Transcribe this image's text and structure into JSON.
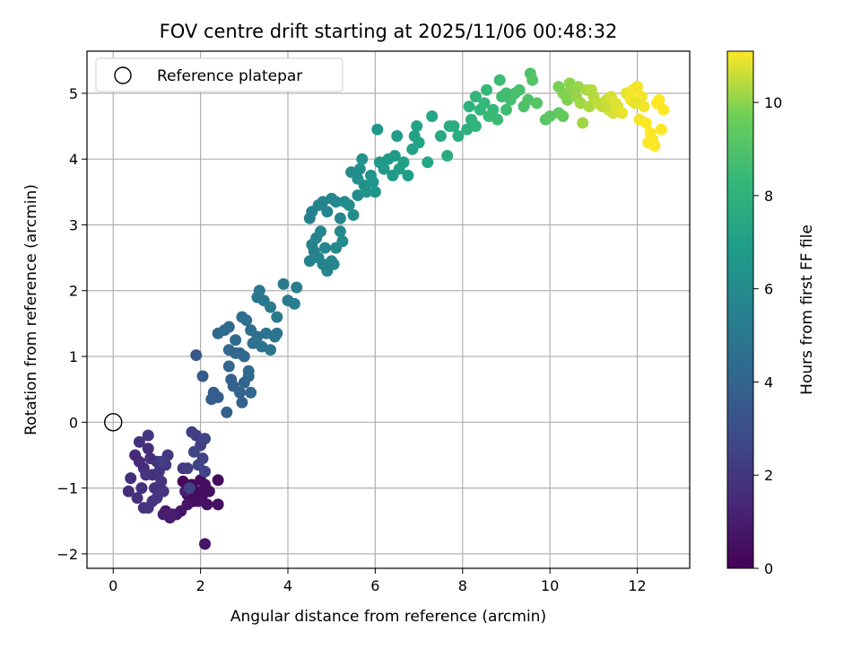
{
  "chart_data": {
    "type": "scatter",
    "title": "FOV centre drift starting at 2025/11/06 00:48:32",
    "xlabel": "Angular distance from reference (arcmin)",
    "ylabel": "Rotation from reference (arcmin)",
    "xlim": [
      -0.6,
      13.2
    ],
    "ylim": [
      -2.22,
      5.64
    ],
    "xticks": [
      0,
      2,
      4,
      6,
      8,
      10,
      12
    ],
    "yticks": [
      -2,
      -1,
      0,
      1,
      2,
      3,
      4,
      5
    ],
    "grid": true,
    "colormap": "viridis",
    "colorbar": {
      "label": "Hours from first FF file",
      "range": [
        0,
        11.1
      ],
      "ticks": [
        0,
        2,
        4,
        6,
        8,
        10
      ]
    },
    "legend": {
      "placement": "top-left",
      "entries": [
        {
          "label": "Reference platepar",
          "marker": "open-circle"
        }
      ]
    },
    "reference_point": {
      "x": 0,
      "y": 0
    },
    "point_color": "#000000",
    "points": [
      [
        1.6,
        -0.9,
        0.2
      ],
      [
        1.7,
        -1.1,
        0.3
      ],
      [
        1.8,
        -0.95,
        0.3
      ],
      [
        1.9,
        -1.05,
        0.4
      ],
      [
        2.0,
        -0.88,
        0.4
      ],
      [
        2.05,
        -1.1,
        0.5
      ],
      [
        2.1,
        -0.95,
        0.5
      ],
      [
        2.15,
        -1.25,
        0.6
      ],
      [
        1.95,
        -1.2,
        0.6
      ],
      [
        2.1,
        -1.85,
        0.7
      ],
      [
        2.2,
        -1.05,
        0.5
      ],
      [
        1.85,
        -1.2,
        0.5
      ],
      [
        2.4,
        -0.88,
        0.4
      ],
      [
        2.4,
        -1.25,
        0.5
      ],
      [
        1.7,
        -1.25,
        0.6
      ],
      [
        1.55,
        -1.35,
        0.7
      ],
      [
        1.45,
        -1.4,
        0.8
      ],
      [
        1.3,
        -1.45,
        0.9
      ],
      [
        1.2,
        -1.35,
        0.9
      ],
      [
        1.15,
        -1.4,
        1.0
      ],
      [
        1.35,
        -1.4,
        1.0
      ],
      [
        1.65,
        -1.05,
        1.0
      ],
      [
        0.5,
        -0.5,
        1.5
      ],
      [
        0.6,
        -0.6,
        1.5
      ],
      [
        0.7,
        -0.7,
        1.6
      ],
      [
        0.8,
        -0.4,
        1.6
      ],
      [
        0.85,
        -0.55,
        1.7
      ],
      [
        0.9,
        -0.8,
        1.7
      ],
      [
        0.95,
        -1.0,
        1.8
      ],
      [
        1.0,
        -0.6,
        1.8
      ],
      [
        1.05,
        -0.75,
        1.9
      ],
      [
        1.1,
        -0.9,
        1.9
      ],
      [
        1.15,
        -1.05,
        2.0
      ],
      [
        1.2,
        -0.65,
        2.0
      ],
      [
        1.25,
        -0.5,
        2.1
      ],
      [
        0.4,
        -0.85,
        1.6
      ],
      [
        0.35,
        -1.05,
        1.6
      ],
      [
        0.55,
        -1.15,
        1.7
      ],
      [
        0.65,
        -1.0,
        1.7
      ],
      [
        0.7,
        -1.3,
        1.8
      ],
      [
        0.8,
        -1.3,
        1.9
      ],
      [
        0.9,
        -1.2,
        1.9
      ],
      [
        0.8,
        -0.2,
        2.0
      ],
      [
        1.0,
        -1.15,
        2.0
      ],
      [
        0.6,
        -0.3,
        1.8
      ],
      [
        1.6,
        -0.7,
        2.1
      ],
      [
        1.7,
        -0.7,
        2.2
      ],
      [
        1.8,
        -0.15,
        2.3
      ],
      [
        1.9,
        -0.2,
        2.3
      ],
      [
        2.0,
        -0.35,
        2.4
      ],
      [
        2.05,
        -0.55,
        2.4
      ],
      [
        1.95,
        -0.65,
        2.5
      ],
      [
        2.1,
        -0.75,
        2.5
      ],
      [
        1.85,
        -0.45,
        2.6
      ],
      [
        2.1,
        -0.25,
        2.6
      ],
      [
        1.75,
        -1.0,
        2.5
      ],
      [
        0.75,
        -0.8,
        1.9
      ],
      [
        1.1,
        -0.6,
        2.2
      ],
      [
        1.9,
        1.02,
        3.4
      ],
      [
        2.05,
        0.7,
        3.5
      ],
      [
        2.25,
        0.35,
        3.6
      ],
      [
        2.3,
        0.45,
        3.7
      ],
      [
        2.4,
        0.38,
        3.7
      ],
      [
        2.6,
        0.15,
        3.8
      ],
      [
        2.7,
        0.65,
        3.9
      ],
      [
        2.75,
        0.55,
        3.9
      ],
      [
        2.9,
        0.45,
        4.0
      ],
      [
        2.95,
        0.3,
        4.0
      ],
      [
        3.0,
        0.6,
        4.0
      ],
      [
        3.1,
        0.7,
        4.1
      ],
      [
        3.15,
        0.45,
        4.1
      ],
      [
        2.65,
        0.85,
        4.1
      ],
      [
        2.8,
        1.05,
        4.2
      ],
      [
        2.9,
        1.05,
        4.2
      ],
      [
        3.0,
        1.0,
        4.2
      ],
      [
        3.1,
        0.78,
        4.3
      ],
      [
        2.4,
        1.35,
        4.2
      ],
      [
        2.55,
        1.4,
        4.3
      ],
      [
        2.65,
        1.45,
        4.3
      ],
      [
        2.8,
        1.25,
        4.4
      ],
      [
        2.95,
        1.6,
        4.4
      ],
      [
        3.05,
        1.55,
        4.5
      ],
      [
        3.15,
        1.4,
        4.5
      ],
      [
        3.2,
        1.2,
        4.6
      ],
      [
        3.3,
        1.3,
        4.6
      ],
      [
        3.4,
        1.15,
        4.7
      ],
      [
        3.5,
        1.35,
        4.7
      ],
      [
        3.6,
        1.1,
        4.8
      ],
      [
        3.7,
        1.3,
        4.8
      ],
      [
        3.75,
        1.35,
        4.9
      ],
      [
        3.3,
        1.9,
        4.9
      ],
      [
        3.35,
        2.0,
        5.0
      ],
      [
        3.45,
        1.85,
        5.0
      ],
      [
        3.6,
        1.75,
        5.1
      ],
      [
        3.75,
        1.6,
        5.1
      ],
      [
        3.9,
        2.1,
        5.2
      ],
      [
        4.0,
        1.85,
        5.2
      ],
      [
        4.2,
        2.05,
        5.3
      ],
      [
        4.15,
        1.8,
        5.3
      ],
      [
        2.65,
        1.1,
        4.2
      ],
      [
        4.5,
        3.1,
        5.5
      ],
      [
        4.55,
        3.2,
        5.5
      ],
      [
        4.7,
        3.3,
        5.6
      ],
      [
        4.8,
        3.35,
        5.6
      ],
      [
        4.9,
        3.2,
        5.7
      ],
      [
        5.0,
        3.4,
        5.7
      ],
      [
        5.1,
        3.35,
        5.8
      ],
      [
        5.2,
        3.1,
        5.8
      ],
      [
        4.6,
        2.6,
        5.6
      ],
      [
        4.7,
        2.5,
        5.6
      ],
      [
        4.8,
        2.4,
        5.7
      ],
      [
        4.9,
        2.3,
        5.7
      ],
      [
        5.0,
        2.45,
        5.8
      ],
      [
        5.05,
        2.4,
        5.8
      ],
      [
        4.55,
        2.7,
        5.6
      ],
      [
        4.65,
        2.8,
        5.7
      ],
      [
        4.75,
        2.9,
        5.7
      ],
      [
        4.85,
        2.65,
        5.8
      ],
      [
        4.5,
        2.45,
        5.5
      ],
      [
        5.1,
        2.65,
        5.9
      ],
      [
        5.2,
        2.9,
        5.9
      ],
      [
        5.25,
        2.75,
        6.0
      ],
      [
        5.3,
        3.35,
        6.0
      ],
      [
        5.45,
        3.8,
        6.1
      ],
      [
        5.5,
        3.15,
        6.1
      ],
      [
        5.6,
        3.7,
        6.2
      ],
      [
        5.65,
        3.85,
        6.2
      ],
      [
        5.7,
        4.0,
        6.3
      ],
      [
        5.75,
        3.6,
        6.3
      ],
      [
        5.8,
        3.5,
        6.4
      ],
      [
        5.9,
        3.75,
        6.4
      ],
      [
        5.95,
        3.65,
        6.5
      ],
      [
        6.0,
        3.5,
        6.5
      ],
      [
        5.4,
        3.3,
        6.1
      ],
      [
        5.6,
        3.45,
        6.2
      ],
      [
        6.05,
        4.45,
        6.6
      ],
      [
        6.1,
        3.95,
        6.7
      ],
      [
        6.2,
        3.85,
        6.7
      ],
      [
        6.3,
        4.0,
        6.8
      ],
      [
        6.4,
        3.75,
        6.8
      ],
      [
        6.45,
        4.05,
        6.9
      ],
      [
        6.5,
        4.35,
        6.9
      ],
      [
        6.55,
        3.85,
        7.0
      ],
      [
        6.65,
        3.95,
        7.0
      ],
      [
        6.75,
        3.75,
        7.0
      ],
      [
        6.85,
        4.15,
        7.1
      ],
      [
        6.9,
        4.35,
        7.1
      ],
      [
        6.95,
        4.5,
        7.2
      ],
      [
        7.0,
        4.25,
        7.2
      ],
      [
        7.2,
        3.95,
        7.3
      ],
      [
        7.3,
        4.65,
        7.4
      ],
      [
        7.5,
        4.35,
        7.5
      ],
      [
        7.65,
        4.05,
        7.6
      ],
      [
        7.7,
        4.5,
        7.6
      ],
      [
        7.8,
        4.5,
        7.7
      ],
      [
        7.9,
        4.35,
        7.8
      ],
      [
        8.1,
        4.45,
        7.9
      ],
      [
        8.2,
        4.6,
        8.0
      ],
      [
        8.3,
        4.5,
        8.1
      ],
      [
        8.15,
        4.8,
        8.0
      ],
      [
        8.3,
        4.95,
        8.2
      ],
      [
        8.4,
        4.75,
        8.2
      ],
      [
        8.5,
        4.85,
        8.3
      ],
      [
        8.55,
        5.05,
        8.3
      ],
      [
        8.6,
        4.65,
        8.4
      ],
      [
        8.7,
        4.75,
        8.4
      ],
      [
        8.8,
        4.6,
        8.5
      ],
      [
        8.85,
        5.2,
        8.5
      ],
      [
        8.9,
        4.95,
        8.6
      ],
      [
        9.0,
        4.75,
        8.6
      ],
      [
        9.1,
        4.9,
        8.7
      ],
      [
        9.2,
        5.0,
        8.8
      ],
      [
        9.3,
        5.05,
        8.8
      ],
      [
        9.4,
        4.8,
        8.9
      ],
      [
        9.5,
        4.9,
        9.0
      ],
      [
        9.55,
        5.3,
        9.0
      ],
      [
        9.6,
        5.2,
        9.1
      ],
      [
        9.7,
        4.85,
        9.1
      ],
      [
        9.9,
        4.6,
        9.2
      ],
      [
        10.0,
        4.65,
        9.3
      ],
      [
        10.2,
        4.7,
        9.4
      ],
      [
        10.3,
        4.65,
        9.5
      ],
      [
        9.0,
        5.0,
        8.7
      ],
      [
        10.2,
        5.1,
        9.8
      ],
      [
        10.3,
        5.0,
        9.9
      ],
      [
        10.4,
        4.9,
        9.9
      ],
      [
        10.45,
        5.15,
        10.0
      ],
      [
        10.5,
        5.05,
        10.0
      ],
      [
        10.6,
        4.95,
        10.1
      ],
      [
        10.65,
        5.1,
        10.1
      ],
      [
        10.7,
        4.85,
        10.2
      ],
      [
        10.75,
        4.55,
        10.2
      ],
      [
        10.85,
        5.05,
        10.3
      ],
      [
        10.9,
        4.8,
        10.3
      ],
      [
        10.95,
        5.05,
        10.4
      ],
      [
        11.0,
        4.95,
        10.4
      ],
      [
        11.1,
        4.85,
        10.5
      ],
      [
        11.2,
        4.8,
        10.5
      ],
      [
        11.3,
        4.9,
        10.6
      ],
      [
        11.35,
        4.75,
        10.6
      ],
      [
        11.4,
        4.95,
        10.7
      ],
      [
        11.45,
        4.7,
        10.7
      ],
      [
        11.5,
        4.85,
        10.8
      ],
      [
        11.55,
        4.8,
        10.8
      ],
      [
        11.65,
        4.7,
        10.9
      ],
      [
        11.75,
        5.0,
        10.9
      ],
      [
        11.85,
        4.9,
        11.0
      ],
      [
        11.9,
        5.05,
        11.0
      ],
      [
        12.0,
        5.1,
        11.0
      ],
      [
        12.05,
        4.6,
        11.0
      ],
      [
        12.1,
        4.95,
        11.0
      ],
      [
        12.2,
        4.55,
        11.1
      ],
      [
        12.25,
        4.25,
        11.1
      ],
      [
        12.3,
        4.4,
        11.1
      ],
      [
        12.35,
        4.3,
        11.1
      ],
      [
        12.4,
        4.2,
        11.1
      ],
      [
        12.45,
        4.85,
        11.1
      ],
      [
        12.5,
        4.9,
        11.1
      ],
      [
        12.55,
        4.45,
        11.1
      ],
      [
        12.6,
        4.75,
        11.1
      ],
      [
        12.15,
        4.8,
        11.0
      ],
      [
        11.95,
        4.85,
        10.9
      ]
    ]
  }
}
